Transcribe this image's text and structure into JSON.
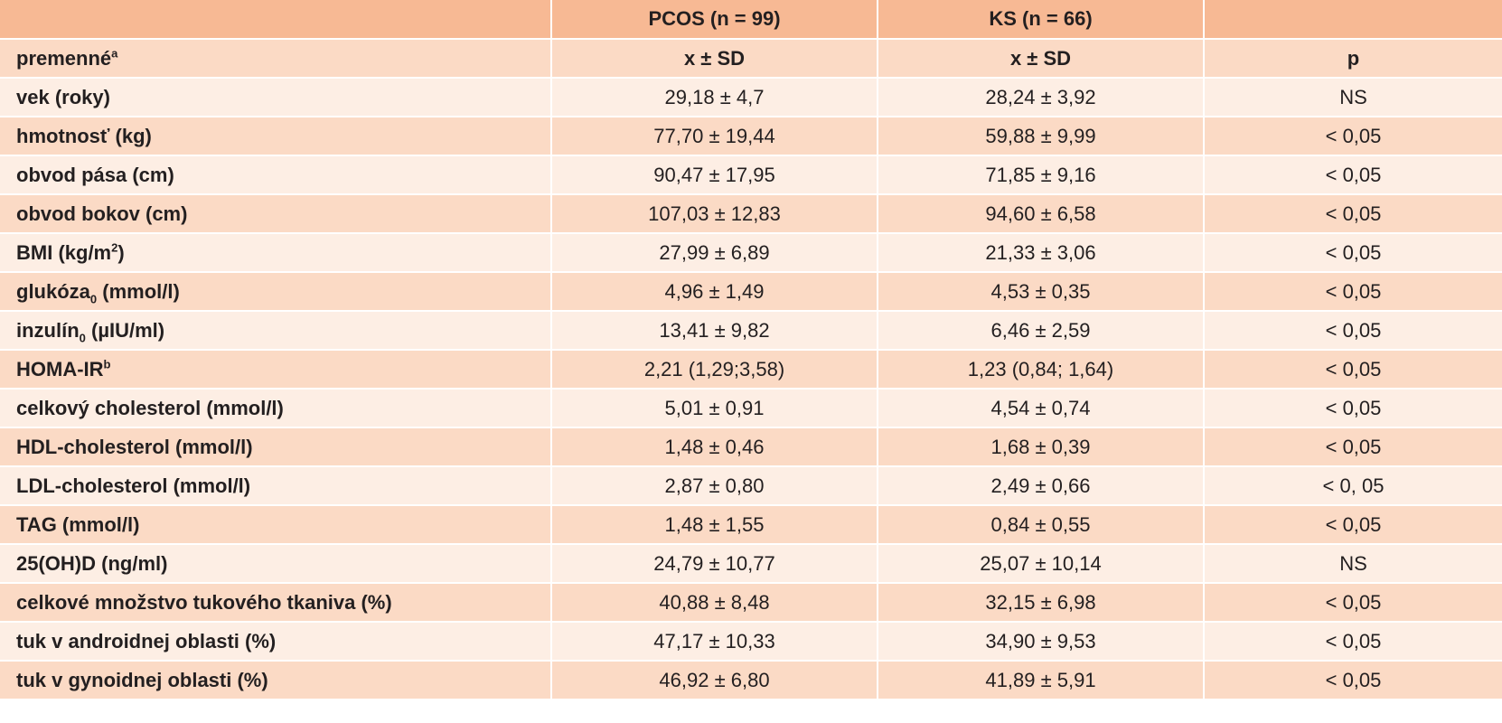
{
  "header": {
    "empty1": "",
    "group1": "PCOS (n = 99)",
    "group2": "KS (n = 66)",
    "empty2": ""
  },
  "subheader": {
    "label": "premenné",
    "label_sup": "a",
    "col1": "x ± SD",
    "col2": "x ± SD",
    "col3": "p"
  },
  "rows": [
    {
      "label": "vek (roky)",
      "sub": "",
      "sup": "",
      "tail": "",
      "pcos": "29,18 ± 4,7",
      "ks": "28,24 ± 3,92",
      "p": "NS"
    },
    {
      "label": "hmotnosť (kg)",
      "sub": "",
      "sup": "",
      "tail": "",
      "pcos": "77,70 ± 19,44",
      "ks": "59,88 ± 9,99",
      "p": "< 0,05"
    },
    {
      "label": "obvod pása (cm)",
      "sub": "",
      "sup": "",
      "tail": "",
      "pcos": "90,47 ± 17,95",
      "ks": "71,85 ± 9,16",
      "p": "< 0,05"
    },
    {
      "label": "obvod bokov (cm)",
      "sub": "",
      "sup": "",
      "tail": "",
      "pcos": "107,03 ± 12,83",
      "ks": "94,60 ± 6,58",
      "p": "< 0,05"
    },
    {
      "label": "BMI (kg/m",
      "sub": "",
      "sup": "2",
      "tail": ")",
      "pcos": "27,99 ± 6,89",
      "ks": "21,33 ± 3,06",
      "p": "< 0,05"
    },
    {
      "label": "glukóza",
      "sub": "0",
      "sup": "",
      "tail": " (mmol/l)",
      "pcos": "4,96 ± 1,49",
      "ks": "4,53 ± 0,35",
      "p": "< 0,05"
    },
    {
      "label": "inzulín",
      "sub": "0",
      "sup": "",
      "tail": " (µIU/ml)",
      "pcos": "13,41 ± 9,82",
      "ks": "6,46 ± 2,59",
      "p": "< 0,05"
    },
    {
      "label": "HOMA-IR",
      "sub": "",
      "sup": "b",
      "tail": "",
      "pcos": "2,21 (1,29;3,58)",
      "ks": "1,23 (0,84; 1,64)",
      "p": "< 0,05"
    },
    {
      "label": "celkový cholesterol (mmol/l)",
      "sub": "",
      "sup": "",
      "tail": "",
      "pcos": "5,01 ± 0,91",
      "ks": "4,54 ± 0,74",
      "p": "< 0,05"
    },
    {
      "label": "HDL-cholesterol (mmol/l)",
      "sub": "",
      "sup": "",
      "tail": "",
      "pcos": "1,48 ± 0,46",
      "ks": "1,68 ± 0,39",
      "p": "< 0,05"
    },
    {
      "label": "LDL-cholesterol (mmol/l)",
      "sub": "",
      "sup": "",
      "tail": "",
      "pcos": "2,87 ± 0,80",
      "ks": "2,49 ± 0,66",
      "p": "< 0, 05"
    },
    {
      "label": "TAG (mmol/l)",
      "sub": "",
      "sup": "",
      "tail": "",
      "pcos": "1,48 ± 1,55",
      "ks": "0,84 ± 0,55",
      "p": "< 0,05"
    },
    {
      "label": "25(OH)D (ng/ml)",
      "sub": "",
      "sup": "",
      "tail": "",
      "pcos": "24,79 ± 10,77",
      "ks": "25,07 ± 10,14",
      "p": "NS"
    },
    {
      "label": "celkové množstvo tukového tkaniva (%)",
      "sub": "",
      "sup": "",
      "tail": "",
      "pcos": "40,88 ± 8,48",
      "ks": "32,15 ± 6,98",
      "p": "< 0,05"
    },
    {
      "label": "tuk v androidnej oblasti (%)",
      "sub": "",
      "sup": "",
      "tail": "",
      "pcos": "47,17 ± 10,33",
      "ks": "34,90 ± 9,53",
      "p": "< 0,05"
    },
    {
      "label": "tuk v gynoidnej oblasti (%)",
      "sub": "",
      "sup": "",
      "tail": "",
      "pcos": "46,92 ± 6,80",
      "ks": "41,89 ± 5,91",
      "p": "< 0,05"
    }
  ]
}
